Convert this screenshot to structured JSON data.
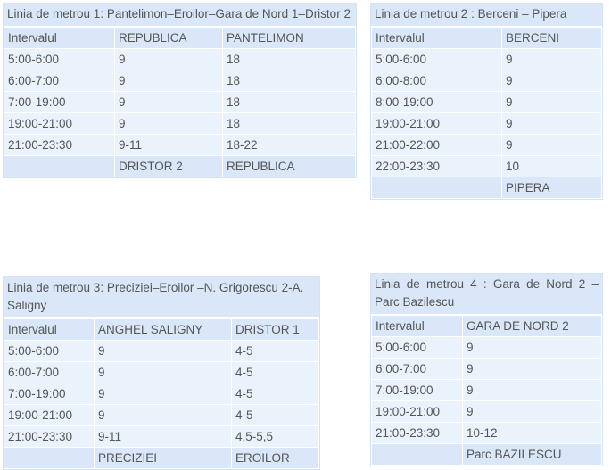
{
  "tables": [
    {
      "caption": "Linia de metrou 1: Pantelimon–Eroilor–Gara de Nord 1–Dristor 2",
      "header": [
        "Intervalul",
        "REPUBLICA",
        "PANTELIMON"
      ],
      "rows": [
        [
          "5:00-6:00",
          "9",
          "18"
        ],
        [
          "6:00-7:00",
          "9",
          "18"
        ],
        [
          "7:00-19:00",
          "9",
          "18"
        ],
        [
          "19:00-21:00",
          "9",
          "18"
        ],
        [
          "21:00-23:30",
          "9-11",
          "18-22"
        ]
      ],
      "footer": [
        "",
        "DRISTOR 2",
        "REPUBLICA"
      ]
    },
    {
      "caption": "Linia de metrou 2 : Berceni – Pipera",
      "header": [
        "Intervalul",
        "BERCENI"
      ],
      "rows": [
        [
          "5:00-6:00",
          "9"
        ],
        [
          "6:00-8:00",
          "9"
        ],
        [
          "8:00-19:00",
          "9"
        ],
        [
          "19:00-21:00",
          "9"
        ],
        [
          "21:00-22:00",
          "9"
        ],
        [
          "22:00-23:30",
          "10"
        ]
      ],
      "footer": [
        "",
        "PIPERA"
      ]
    },
    {
      "caption": "Linia de metrou 3: Preciziei–Eroilor –N. Grigorescu 2-A. Saligny",
      "header": [
        "Intervalul",
        "ANGHEL SALIGNY",
        "DRISTOR 1"
      ],
      "rows": [
        [
          "5:00-6:00",
          "9",
          "4-5"
        ],
        [
          "6:00-7:00",
          "9",
          "4-5"
        ],
        [
          "7:00-19:00",
          "9",
          "4-5"
        ],
        [
          "19:00-21:00",
          "9",
          "4-5"
        ],
        [
          "21:00-23:30",
          "9-11",
          "4,5-5,5"
        ]
      ],
      "footer": [
        "",
        "PRECIZIEI",
        "EROILOR"
      ]
    },
    {
      "caption": "Linia de metrou 4 : Gara de Nord 2 – Parc Bazilescu",
      "header": [
        "Intervalul",
        "GARA DE NORD 2"
      ],
      "rows": [
        [
          "5:00-6:00",
          "9"
        ],
        [
          "6:00-7:00",
          "9"
        ],
        [
          "7:00-19:00",
          "9"
        ],
        [
          "19:00-21:00",
          "9"
        ],
        [
          "21:00-23:30",
          "10-12"
        ]
      ],
      "footer": [
        "",
        "Parc BAZILESCU"
      ]
    }
  ]
}
